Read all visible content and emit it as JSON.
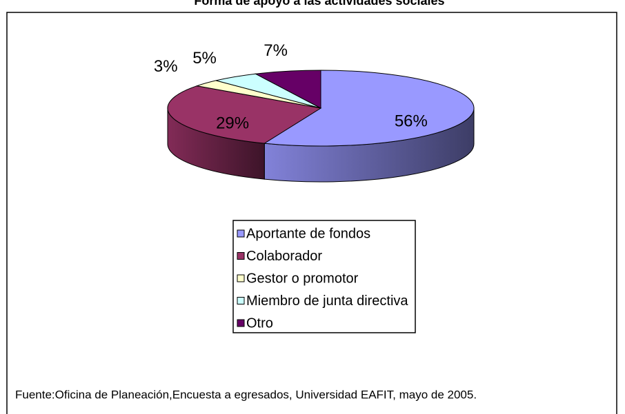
{
  "chart_data": {
    "type": "pie",
    "title": "Forma de apoyo a las actividades sociales",
    "categories": [
      "Aportante de fondos",
      "Colaborador",
      "Gestor o promotor",
      "Miembro de junta directiva",
      "Otro"
    ],
    "values": [
      56,
      29,
      3,
      5,
      7
    ],
    "value_labels": [
      "56%",
      "29%",
      "3%",
      "5%",
      "7%"
    ],
    "colors": [
      "#9999ff",
      "#993366",
      "#ffffcc",
      "#ccffff",
      "#660066"
    ],
    "legend": "bottom",
    "source": "Fuente:Oficina de Planeación,Encuesta a egresados, Universidad EAFIT, mayo de 2005."
  }
}
